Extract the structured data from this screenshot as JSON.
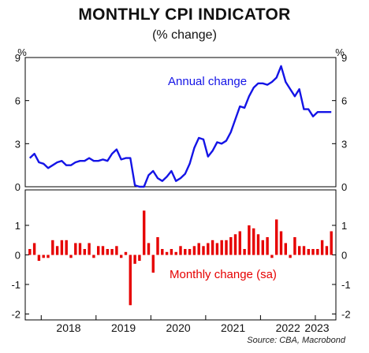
{
  "title": "MONTHLY CPI INDICATOR",
  "subtitle": "(% change)",
  "source": "Source: CBA, Macrobond",
  "chart_data": [
    {
      "type": "line",
      "unit_label_left": "%",
      "unit_label_right": "%",
      "annotation": "Annual change",
      "color": "#1414e6",
      "ylim": [
        0,
        9
      ],
      "yticks": [
        "0",
        "3",
        "6",
        "9"
      ],
      "x_start": "2017-10",
      "x": [
        "2017-10",
        "2017-11",
        "2017-12",
        "2018-01",
        "2018-02",
        "2018-03",
        "2018-04",
        "2018-05",
        "2018-06",
        "2018-07",
        "2018-08",
        "2018-09",
        "2018-10",
        "2018-11",
        "2018-12",
        "2019-01",
        "2019-02",
        "2019-03",
        "2019-04",
        "2019-05",
        "2019-06",
        "2019-07",
        "2019-08",
        "2019-09",
        "2019-10",
        "2019-11",
        "2019-12",
        "2020-01",
        "2020-02",
        "2020-03",
        "2020-04",
        "2020-05",
        "2020-06",
        "2020-07",
        "2020-08",
        "2020-09",
        "2020-10",
        "2020-11",
        "2020-12",
        "2021-01",
        "2021-02",
        "2021-03",
        "2021-04",
        "2021-05",
        "2021-06",
        "2021-07",
        "2021-08",
        "2021-09",
        "2021-10",
        "2021-11",
        "2021-12",
        "2022-01",
        "2022-02",
        "2022-03",
        "2022-04",
        "2022-05",
        "2022-06",
        "2022-07",
        "2022-08",
        "2022-09",
        "2022-10",
        "2022-11",
        "2022-12",
        "2023-01",
        "2023-02",
        "2023-03",
        "2023-04"
      ],
      "values": [
        2.0,
        2.3,
        1.7,
        1.6,
        1.3,
        1.5,
        1.7,
        1.8,
        1.5,
        1.5,
        1.7,
        1.8,
        1.8,
        2.0,
        1.8,
        1.8,
        1.9,
        1.8,
        2.3,
        2.6,
        1.9,
        2.0,
        2.0,
        0.1,
        0.0,
        -0.1,
        0.8,
        1.1,
        0.6,
        0.4,
        0.7,
        1.1,
        0.4,
        0.6,
        0.9,
        1.6,
        2.7,
        3.4,
        3.3,
        2.1,
        2.5,
        3.1,
        3.0,
        3.2,
        3.8,
        4.7,
        5.6,
        5.5,
        6.3,
        6.9,
        7.2,
        7.2,
        7.1,
        7.3,
        7.6,
        8.4,
        7.3,
        6.8,
        6.3,
        6.8,
        5.4,
        5.4,
        4.9,
        5.2,
        5.2,
        5.2,
        5.2
      ]
    },
    {
      "type": "bar",
      "annotation": "Monthly change (sa)",
      "color": "#e60000",
      "ylim": [
        -2.2,
        2.2
      ],
      "yticks": [
        "-2",
        "-1",
        "0",
        "1"
      ],
      "x": [
        "2017-10",
        "2017-11",
        "2017-12",
        "2018-01",
        "2018-02",
        "2018-03",
        "2018-04",
        "2018-05",
        "2018-06",
        "2018-07",
        "2018-08",
        "2018-09",
        "2018-10",
        "2018-11",
        "2018-12",
        "2019-01",
        "2019-02",
        "2019-03",
        "2019-04",
        "2019-05",
        "2019-06",
        "2019-07",
        "2019-08",
        "2019-09",
        "2019-10",
        "2019-11",
        "2019-12",
        "2020-01",
        "2020-02",
        "2020-03",
        "2020-04",
        "2020-05",
        "2020-06",
        "2020-07",
        "2020-08",
        "2020-09",
        "2020-10",
        "2020-11",
        "2020-12",
        "2021-01",
        "2021-02",
        "2021-03",
        "2021-04",
        "2021-05",
        "2021-06",
        "2021-07",
        "2021-08",
        "2021-09",
        "2021-10",
        "2021-11",
        "2021-12",
        "2022-01",
        "2022-02",
        "2022-03",
        "2022-04",
        "2022-05",
        "2022-06",
        "2022-07",
        "2022-08",
        "2022-09",
        "2022-10",
        "2022-11",
        "2022-12",
        "2023-01",
        "2023-02",
        "2023-03",
        "2023-04"
      ],
      "values": [
        0.2,
        0.4,
        -0.2,
        -0.1,
        -0.1,
        0.5,
        0.3,
        0.5,
        0.5,
        -0.1,
        0.4,
        0.4,
        0.2,
        0.4,
        -0.1,
        0.3,
        0.3,
        0.2,
        0.2,
        0.3,
        -0.1,
        0.1,
        -1.7,
        -0.3,
        -0.2,
        1.5,
        0.4,
        -0.6,
        0.6,
        0.2,
        0.1,
        0.2,
        0.1,
        0.3,
        0.2,
        0.2,
        0.3,
        0.4,
        0.3,
        0.4,
        0.5,
        0.4,
        0.5,
        0.5,
        0.6,
        0.7,
        0.8,
        0.2,
        1.0,
        0.9,
        0.7,
        0.5,
        0.6,
        -0.1,
        1.2,
        0.8,
        0.4,
        -0.1,
        0.6,
        0.3,
        0.3,
        0.2,
        0.2,
        0.2,
        0.5,
        0.3,
        0.8
      ]
    }
  ],
  "x_axis": {
    "tick_labels": [
      "2018",
      "2019",
      "2020",
      "2021",
      "2022",
      "2023"
    ]
  }
}
